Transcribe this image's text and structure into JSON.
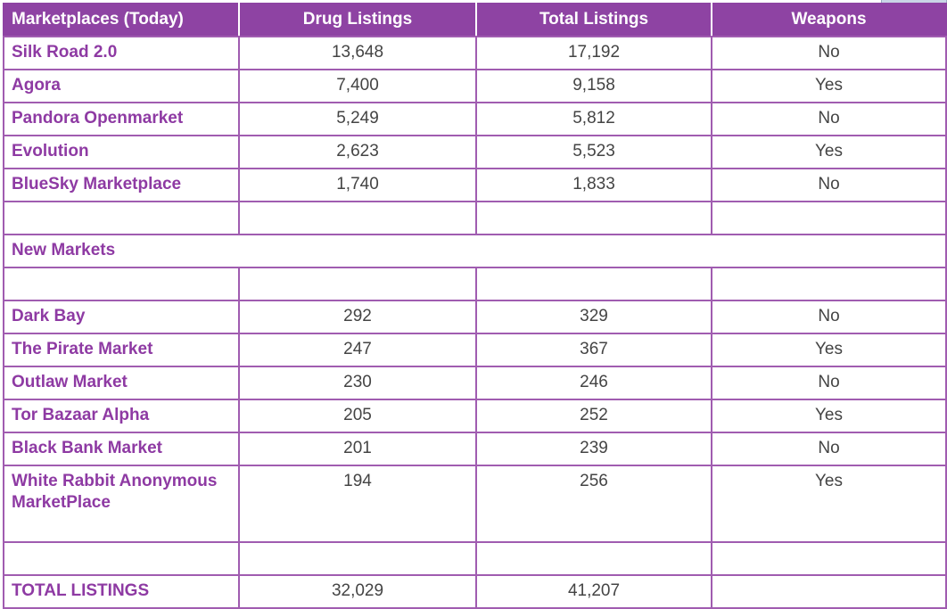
{
  "header": {
    "col1": "Marketplaces (Today)",
    "col2": "Drug Listings",
    "col3": "Total Listings",
    "col4": "Weapons"
  },
  "today_markets": [
    {
      "name": "Silk Road 2.0",
      "drug": "13,648",
      "total": "17,192",
      "weapons": "No"
    },
    {
      "name": "Agora",
      "drug": "7,400",
      "total": "9,158",
      "weapons": "Yes"
    },
    {
      "name": "Pandora Openmarket",
      "drug": "5,249",
      "total": "5,812",
      "weapons": "No"
    },
    {
      "name": "Evolution",
      "drug": "2,623",
      "total": "5,523",
      "weapons": "Yes"
    },
    {
      "name": "BlueSky Marketplace",
      "drug": "1,740",
      "total": "1,833",
      "weapons": "No"
    }
  ],
  "section_label": "New Markets",
  "new_markets": [
    {
      "name": "Dark Bay",
      "drug": "292",
      "total": "329",
      "weapons": "No"
    },
    {
      "name": "The Pirate Market",
      "drug": "247",
      "total": "367",
      "weapons": "Yes"
    },
    {
      "name": "Outlaw Market",
      "drug": "230",
      "total": "246",
      "weapons": "No"
    },
    {
      "name": "Tor Bazaar Alpha",
      "drug": "205",
      "total": "252",
      "weapons": "Yes"
    },
    {
      "name": "Black Bank Market",
      "drug": "201",
      "total": "239",
      "weapons": "No"
    },
    {
      "name": "White Rabbit Anonymous MarketPlace",
      "drug": "194",
      "total": "256",
      "weapons": "Yes"
    }
  ],
  "totals": {
    "label": "TOTAL LISTINGS",
    "drug": "32,029",
    "total": "41,207",
    "weapons": ""
  },
  "colors": {
    "header_bg": "#8e43a3",
    "border": "#a05cb0",
    "name_text": "#8e3aa3"
  }
}
